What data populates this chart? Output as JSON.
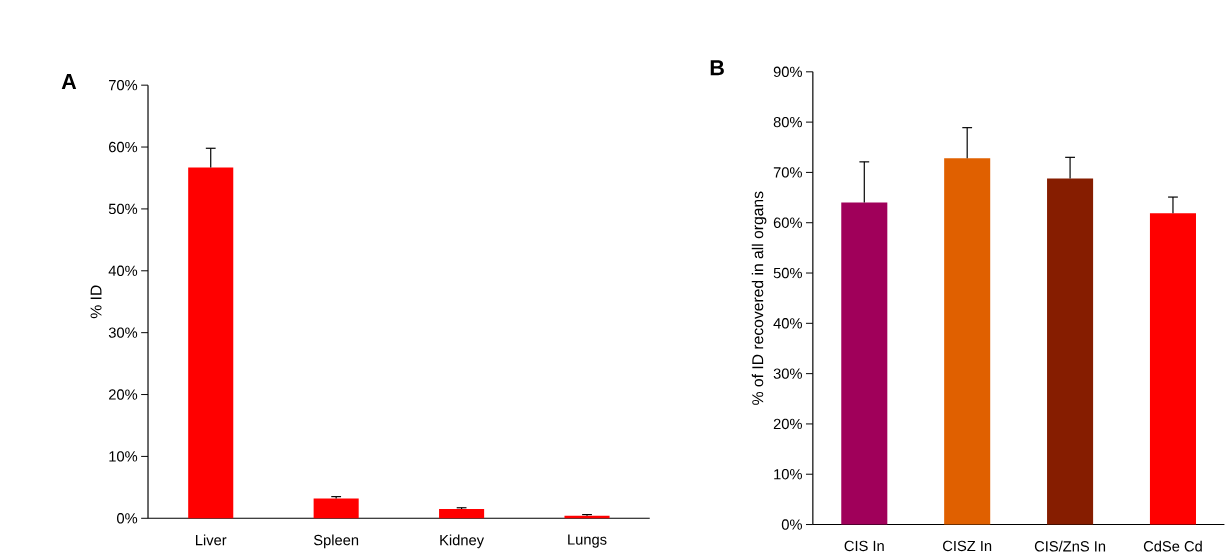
{
  "chart_data": [
    {
      "type": "bar",
      "title": "A",
      "ylabel": "% ID",
      "categories": [
        "Liver",
        "Spleen",
        "Kidney",
        "Lungs"
      ],
      "values": [
        56.7,
        3.2,
        1.5,
        0.4
      ],
      "errors": [
        [
          56.7,
          59.8
        ],
        [
          3.2,
          3.5
        ],
        [
          1.5,
          1.7
        ],
        [
          0.4,
          0.6
        ]
      ],
      "colors": [
        "#ff0000",
        "#ff0000",
        "#ff0000",
        "#ff0000"
      ],
      "ylim": [
        0,
        70
      ],
      "yticks": [
        {
          "value": 0,
          "label": "0%"
        },
        {
          "value": 10,
          "label": "10%"
        },
        {
          "value": 20,
          "label": "20%"
        },
        {
          "value": 30,
          "label": "30%"
        },
        {
          "value": 40,
          "label": "40%"
        },
        {
          "value": 50,
          "label": "50%"
        },
        {
          "value": 60,
          "label": "60%"
        },
        {
          "value": 70,
          "label": "70%"
        }
      ]
    },
    {
      "type": "bar",
      "title": "B",
      "ylabel": "% of ID recovered in all organs",
      "categories": [
        "CIS In",
        "CISZ In",
        "CIS/ZnS In",
        "CdSe Cd"
      ],
      "values": [
        64.0,
        72.8,
        68.8,
        61.9
      ],
      "errors": [
        [
          64.0,
          72.1
        ],
        [
          72.8,
          78.9
        ],
        [
          68.8,
          73.0
        ],
        [
          61.9,
          65.1
        ]
      ],
      "colors": [
        "#a0005a",
        "#e06000",
        "#861d00",
        "#ff0000"
      ],
      "ylim": [
        0,
        90
      ],
      "yticks": [
        {
          "value": 0,
          "label": "0%"
        },
        {
          "value": 10,
          "label": "10%"
        },
        {
          "value": 20,
          "label": "20%"
        },
        {
          "value": 30,
          "label": "30%"
        },
        {
          "value": 40,
          "label": "40%"
        },
        {
          "value": 50,
          "label": "50%"
        },
        {
          "value": 60,
          "label": "60%"
        },
        {
          "value": 70,
          "label": "70%"
        },
        {
          "value": 80,
          "label": "80%"
        },
        {
          "value": 90,
          "label": "90%"
        }
      ]
    }
  ]
}
